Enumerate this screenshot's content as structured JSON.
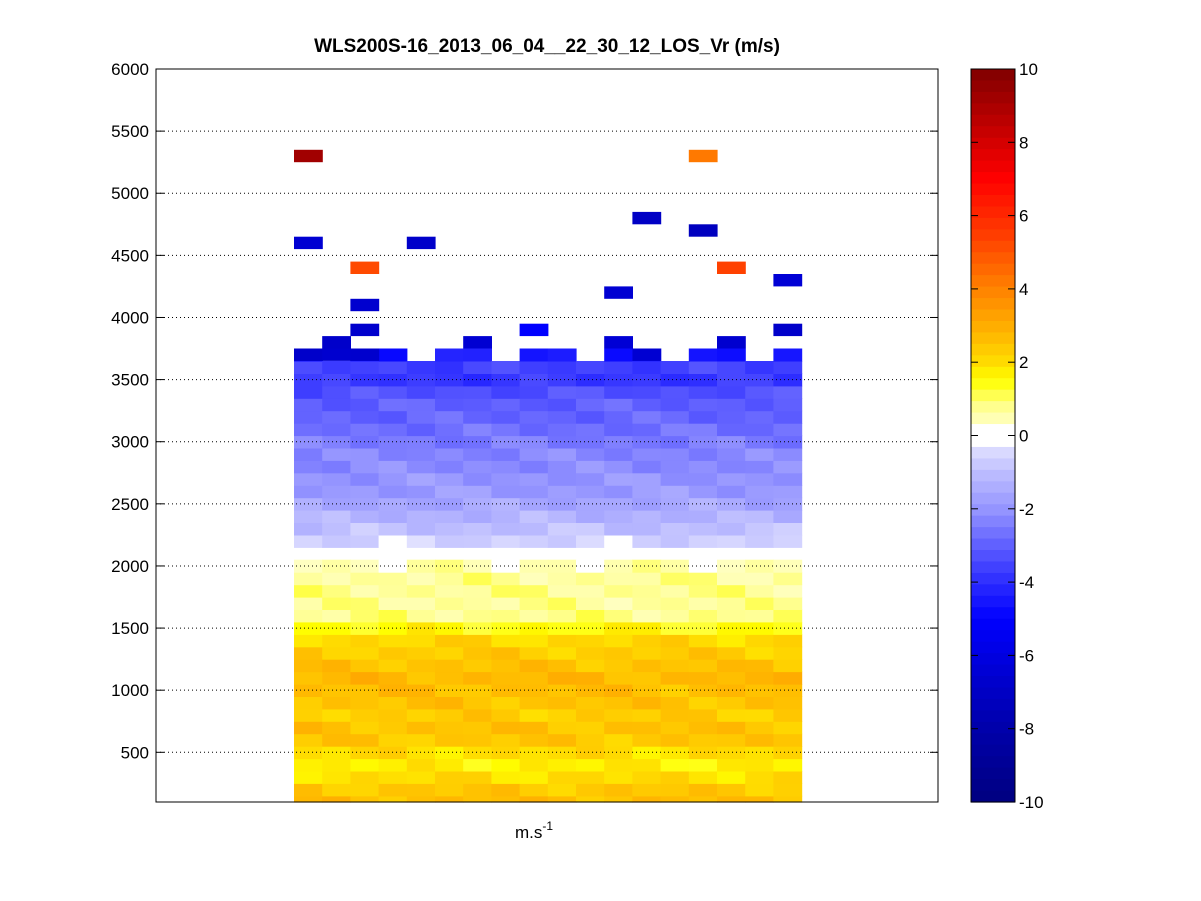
{
  "chart_data": {
    "type": "heatmap",
    "title": "WLS200S-16_2013_06_04__22_30_12_LOS_Vr (m/s)",
    "xlabel": "m.s",
    "xlabel_sup": "-1",
    "ylabel": "",
    "ylim": [
      100,
      6000
    ],
    "yticks": [
      "500",
      "1000",
      "1500",
      "2000",
      "2500",
      "3000",
      "3500",
      "4000",
      "4500",
      "5000",
      "5500",
      "6000"
    ],
    "grid": "y-dotted",
    "colorbar": {
      "range": [
        -10,
        10
      ],
      "ticks": [
        "-10",
        "-8",
        "-6",
        "-4",
        "-2",
        "0",
        "2",
        "4",
        "6",
        "8",
        "10"
      ],
      "placement": "right",
      "colormap": "jet-like diverging, white at 0"
    },
    "columns": 18,
    "row_step_m": 100,
    "profile": [
      {
        "alt": 100,
        "vr": 2.6
      },
      {
        "alt": 200,
        "vr": 2.4
      },
      {
        "alt": 300,
        "vr": 2.0
      },
      {
        "alt": 400,
        "vr": 1.7
      },
      {
        "alt": 500,
        "vr": 2.0
      },
      {
        "alt": 600,
        "vr": 2.4
      },
      {
        "alt": 700,
        "vr": 2.5
      },
      {
        "alt": 800,
        "vr": 2.3
      },
      {
        "alt": 900,
        "vr": 2.5
      },
      {
        "alt": 1000,
        "vr": 2.6
      },
      {
        "alt": 1100,
        "vr": 2.7
      },
      {
        "alt": 1200,
        "vr": 2.5
      },
      {
        "alt": 1300,
        "vr": 2.3
      },
      {
        "alt": 1400,
        "vr": 2.1
      },
      {
        "alt": 1500,
        "vr": 1.5
      },
      {
        "alt": 1600,
        "vr": 0.8
      },
      {
        "alt": 1700,
        "vr": 0.7
      },
      {
        "alt": 1800,
        "vr": 0.75
      },
      {
        "alt": 1900,
        "vr": 0.7
      },
      {
        "alt": 2000,
        "vr": 0.5
      },
      {
        "alt": 2200,
        "vr": -0.6
      },
      {
        "alt": 2300,
        "vr": -1.0
      },
      {
        "alt": 2400,
        "vr": -1.3
      },
      {
        "alt": 2500,
        "vr": -1.6
      },
      {
        "alt": 2600,
        "vr": -1.9
      },
      {
        "alt": 2700,
        "vr": -2.0
      },
      {
        "alt": 2800,
        "vr": -2.2
      },
      {
        "alt": 2900,
        "vr": -2.3
      },
      {
        "alt": 3000,
        "vr": -2.5
      },
      {
        "alt": 3100,
        "vr": -2.7
      },
      {
        "alt": 3200,
        "vr": -2.9
      },
      {
        "alt": 3300,
        "vr": -3.0
      },
      {
        "alt": 3400,
        "vr": -3.3
      },
      {
        "alt": 3500,
        "vr": -3.8
      },
      {
        "alt": 3600,
        "vr": -3.6
      },
      {
        "alt": 3700,
        "vr": -4.5
      }
    ],
    "scattered_cells": [
      {
        "col": 0,
        "alt": 5300,
        "vr": 9.2
      },
      {
        "col": 14,
        "alt": 5300,
        "vr": 4.2
      },
      {
        "col": 12,
        "alt": 4800,
        "vr": -7.0
      },
      {
        "col": 14,
        "alt": 4700,
        "vr": -7.2
      },
      {
        "col": 0,
        "alt": 4600,
        "vr": -6.5
      },
      {
        "col": 4,
        "alt": 4600,
        "vr": -6.8
      },
      {
        "col": 2,
        "alt": 4400,
        "vr": 5.2
      },
      {
        "col": 15,
        "alt": 4400,
        "vr": 5.4
      },
      {
        "col": 17,
        "alt": 4300,
        "vr": -6.4
      },
      {
        "col": 11,
        "alt": 4200,
        "vr": -6.5
      },
      {
        "col": 2,
        "alt": 4100,
        "vr": -6.6
      },
      {
        "col": 2,
        "alt": 3900,
        "vr": -6.7
      },
      {
        "col": 8,
        "alt": 3900,
        "vr": -5.0
      },
      {
        "col": 17,
        "alt": 3900,
        "vr": -6.8
      },
      {
        "col": 1,
        "alt": 3800,
        "vr": -6.8
      },
      {
        "col": 6,
        "alt": 3800,
        "vr": -6.5
      },
      {
        "col": 11,
        "alt": 3800,
        "vr": -6.4
      },
      {
        "col": 15,
        "alt": 3800,
        "vr": -6.6
      },
      {
        "col": 0,
        "alt": 3700,
        "vr": -6.8
      },
      {
        "col": 1,
        "alt": 3700,
        "vr": -6.6
      },
      {
        "col": 2,
        "alt": 3700,
        "vr": -6.7
      },
      {
        "col": 12,
        "alt": 3700,
        "vr": -6.5
      }
    ]
  }
}
